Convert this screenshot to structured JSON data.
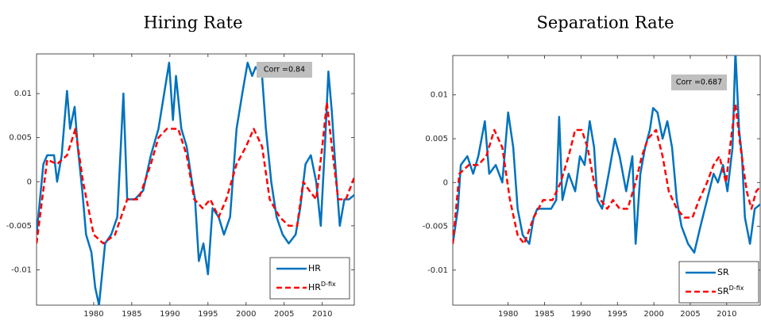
{
  "chart_data": [
    {
      "type": "line",
      "title": "Hiring Rate",
      "annotation": "Corr =0.84",
      "xlim": [
        1972.5,
        2014.2
      ],
      "ylim": [
        -0.014,
        0.0145
      ],
      "xticks": [
        1980,
        1985,
        1990,
        1995,
        2000,
        2005,
        2010
      ],
      "yticks": [
        -0.01,
        -0.005,
        0,
        0.005,
        0.01
      ],
      "series": [
        {
          "name": "HR",
          "color": "#0072bd",
          "dashed": false,
          "x": [
            1972.5,
            1973.4,
            1973.9,
            1974.8,
            1975.2,
            1975.8,
            1976.5,
            1976.9,
            1977.5,
            1977.9,
            1978.5,
            1979.0,
            1979.7,
            1980.2,
            1980.7,
            1981.5,
            1982.3,
            1983.1,
            1983.9,
            1984.4,
            1985.4,
            1986.5,
            1987.5,
            1988.5,
            1989.9,
            1990.4,
            1990.8,
            1991.5,
            1992.2,
            1992.9,
            1993.3,
            1993.8,
            1994.4,
            1995.0,
            1995.6,
            1996.4,
            1997.1,
            1997.9,
            1998.75,
            1999.5,
            2000.2,
            2000.8,
            2001.25,
            2002.1,
            2002.6,
            2003.3,
            2004.0,
            2004.8,
            2005.6,
            2006.5,
            2007.1,
            2007.8,
            2008.5,
            2009.2,
            2009.8,
            2010.4,
            2010.8,
            2011.25,
            2011.7,
            2012.3,
            2012.9,
            2013.5,
            2014.2
          ],
          "values": [
            -0.006,
            0.002,
            0.003,
            0.003,
            0.0,
            0.003,
            0.0103,
            0.006,
            0.0085,
            0.004,
            -0.001,
            -0.006,
            -0.008,
            -0.012,
            -0.014,
            -0.007,
            -0.006,
            -0.004,
            0.01,
            -0.002,
            -0.002,
            -0.001,
            0.003,
            0.006,
            0.0135,
            0.007,
            0.012,
            0.006,
            0.004,
            0.0,
            -0.002,
            -0.009,
            -0.007,
            -0.0105,
            -0.003,
            -0.004,
            -0.006,
            -0.004,
            0.006,
            0.01,
            0.0135,
            0.012,
            0.013,
            0.012,
            0.006,
            0.0,
            -0.004,
            -0.006,
            -0.007,
            -0.006,
            -0.003,
            0.002,
            0.003,
            0.0,
            -0.005,
            0.005,
            0.0125,
            0.008,
            0.002,
            -0.005,
            -0.002,
            -0.002,
            -0.0015
          ]
        },
        {
          "name": "HR",
          "superscript": "D-fix",
          "color": "#ff0000",
          "dashed": true,
          "x": [
            1972.5,
            1973.9,
            1975.2,
            1976.5,
            1977.6,
            1978.6,
            1980.0,
            1981.25,
            1982.8,
            1984.4,
            1985.9,
            1987.5,
            1988.5,
            1989.6,
            1991.1,
            1992.2,
            1993.2,
            1994.3,
            1995.3,
            1996.4,
            1997.4,
            1998.75,
            2000.0,
            2001.0,
            2002.1,
            2003.1,
            2004.4,
            2005.6,
            2006.7,
            2007.5,
            2008.3,
            2009.2,
            2010.0,
            2010.6,
            2011.25,
            2012.1,
            2013.1,
            2014.2
          ],
          "values": [
            -0.007,
            0.0025,
            0.002,
            0.003,
            0.006,
            0.0,
            -0.006,
            -0.007,
            -0.006,
            -0.002,
            -0.002,
            0.002,
            0.005,
            0.006,
            0.006,
            0.003,
            -0.002,
            -0.003,
            -0.002,
            -0.004,
            -0.002,
            0.002,
            0.004,
            0.006,
            0.004,
            -0.002,
            -0.004,
            -0.005,
            -0.005,
            0.0,
            -0.001,
            -0.002,
            0.004,
            0.009,
            0.004,
            -0.002,
            -0.002,
            0.0005
          ]
        }
      ]
    },
    {
      "type": "line",
      "title": "Separation Rate",
      "annotation": "Corr =0.687",
      "xlim": [
        1972.4,
        2014.6
      ],
      "ylim": [
        -0.014,
        0.0145
      ],
      "xticks": [
        1980,
        1985,
        1990,
        1995,
        2000,
        2005,
        2010
      ],
      "yticks": [
        -0.01,
        -0.005,
        0,
        0.005,
        0.01
      ],
      "series": [
        {
          "name": "SR",
          "color": "#0072bd",
          "dashed": false,
          "x": [
            1972.4,
            1973.1,
            1973.5,
            1974.4,
            1975.2,
            1975.9,
            1976.8,
            1977.4,
            1978.3,
            1979.2,
            1980.0,
            1980.7,
            1981.3,
            1982.0,
            1982.9,
            1983.5,
            1984.0,
            1984.4,
            1985.3,
            1985.9,
            1986.6,
            1987.0,
            1987.45,
            1988.3,
            1989.2,
            1989.85,
            1990.5,
            1991.2,
            1991.8,
            1992.25,
            1992.9,
            1993.8,
            1994.65,
            1995.3,
            1996.2,
            1997.05,
            1997.5,
            1998.15,
            1998.8,
            1999.45,
            1999.9,
            2000.5,
            2001.2,
            2001.85,
            2002.5,
            2003.15,
            2003.8,
            2004.7,
            2005.55,
            2006.4,
            2007.3,
            2008.2,
            2008.8,
            2009.5,
            2010.1,
            2010.8,
            2011.2,
            2011.7,
            2012.1,
            2012.5,
            2013.2,
            2013.85,
            2014.6
          ],
          "values": [
            -0.007,
            -0.003,
            0.002,
            0.003,
            0.001,
            0.003,
            0.007,
            0.001,
            0.002,
            0.0,
            0.008,
            0.004,
            -0.003,
            -0.006,
            -0.007,
            -0.004,
            -0.003,
            -0.003,
            -0.003,
            -0.003,
            -0.002,
            0.0075,
            -0.002,
            0.001,
            -0.001,
            0.003,
            0.002,
            0.007,
            0.004,
            -0.002,
            -0.003,
            0.001,
            0.005,
            0.003,
            -0.001,
            0.003,
            -0.007,
            0.001,
            0.004,
            0.006,
            0.0085,
            0.008,
            0.005,
            0.007,
            0.004,
            -0.002,
            -0.005,
            -0.007,
            -0.008,
            -0.005,
            -0.002,
            0.001,
            0.0,
            0.002,
            -0.001,
            0.004,
            0.015,
            0.006,
            0.003,
            -0.004,
            -0.007,
            -0.003,
            -0.0025
          ]
        },
        {
          "name": "SR",
          "superscript": "D-fix",
          "color": "#ff0000",
          "dashed": true,
          "x": [
            1972.4,
            1973.3,
            1974.6,
            1975.9,
            1977.0,
            1978.1,
            1979.2,
            1980.25,
            1981.3,
            1982.2,
            1983.5,
            1984.8,
            1986.1,
            1987.2,
            1988.3,
            1989.2,
            1990.1,
            1990.9,
            1991.8,
            1992.7,
            1993.6,
            1994.4,
            1995.3,
            1996.4,
            1997.5,
            1998.35,
            1999.2,
            2000.3,
            2001.2,
            2002.05,
            2003.15,
            2004.2,
            2005.3,
            2006.2,
            2007.3,
            2008.2,
            2009.0,
            2009.9,
            2010.6,
            2011.2,
            2011.9,
            2012.75,
            2013.4,
            2014.05,
            2014.6
          ],
          "values": [
            -0.007,
            0.001,
            0.002,
            0.002,
            0.003,
            0.006,
            0.004,
            -0.002,
            -0.006,
            -0.007,
            -0.004,
            -0.002,
            -0.002,
            0.0,
            0.003,
            0.006,
            0.006,
            0.004,
            0.0,
            -0.002,
            -0.003,
            -0.002,
            -0.003,
            -0.003,
            0.0,
            0.003,
            0.005,
            0.006,
            0.003,
            -0.001,
            -0.003,
            -0.004,
            -0.004,
            -0.002,
            0.0,
            0.002,
            0.003,
            0.0,
            0.005,
            0.009,
            0.004,
            -0.001,
            -0.003,
            -0.001,
            -0.0005
          ]
        }
      ]
    }
  ]
}
